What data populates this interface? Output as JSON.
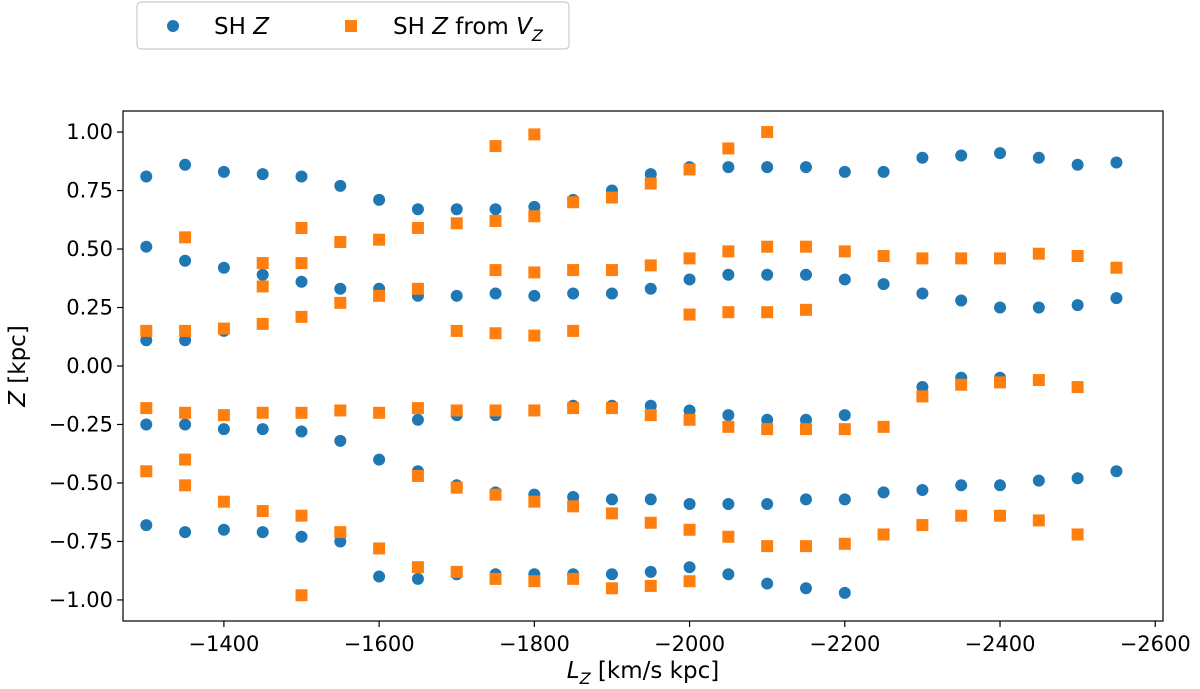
{
  "chart_data": {
    "type": "scatter",
    "title": "",
    "xlabel": {
      "main": "L",
      "sub": "Z",
      "rest": " [km/s kpc]"
    },
    "ylabel": {
      "main": "Z",
      "rest": " [kpc]"
    },
    "xlim": [
      -1270,
      -2610
    ],
    "ylim": [
      -1.09,
      1.09
    ],
    "x_ticks": [
      -1400,
      -1600,
      -1800,
      -2000,
      -2200,
      -2400,
      -2600
    ],
    "x_tick_labels": [
      "−1400",
      "−1600",
      "−1800",
      "−2000",
      "−2200",
      "−2400",
      "−2600"
    ],
    "y_ticks": [
      1.0,
      0.75,
      0.5,
      0.25,
      0.0,
      -0.25,
      -0.5,
      -0.75,
      -1.0
    ],
    "y_tick_labels": [
      "1.00",
      "0.75",
      "0.50",
      "0.25",
      "0.00",
      "−0.25",
      "−0.50",
      "−0.75",
      "−1.00"
    ],
    "grid": false,
    "legend_position": "top-left-outside",
    "series": [
      {
        "name": "SH Z",
        "legend": {
          "prefix": "SH ",
          "italic": "Z",
          "suffix": "",
          "sub": ""
        },
        "marker": "circle",
        "color": "#1f77b4",
        "points": [
          [
            -1300,
            0.81
          ],
          [
            -1300,
            0.51
          ],
          [
            -1300,
            0.11
          ],
          [
            -1300,
            -0.25
          ],
          [
            -1300,
            -0.68
          ],
          [
            -1350,
            0.86
          ],
          [
            -1350,
            0.45
          ],
          [
            -1350,
            0.11
          ],
          [
            -1350,
            -0.25
          ],
          [
            -1350,
            -0.71
          ],
          [
            -1400,
            0.83
          ],
          [
            -1400,
            0.42
          ],
          [
            -1400,
            0.15
          ],
          [
            -1400,
            -0.27
          ],
          [
            -1400,
            -0.7
          ],
          [
            -1450,
            0.82
          ],
          [
            -1450,
            0.39
          ],
          [
            -1450,
            -0.27
          ],
          [
            -1450,
            -0.71
          ],
          [
            -1500,
            0.81
          ],
          [
            -1500,
            0.36
          ],
          [
            -1500,
            -0.28
          ],
          [
            -1500,
            -0.73
          ],
          [
            -1550,
            0.77
          ],
          [
            -1550,
            0.33
          ],
          [
            -1550,
            -0.32
          ],
          [
            -1550,
            -0.75
          ],
          [
            -1600,
            0.71
          ],
          [
            -1600,
            0.33
          ],
          [
            -1600,
            -0.4
          ],
          [
            -1600,
            -0.9
          ],
          [
            -1650,
            0.67
          ],
          [
            -1650,
            0.3
          ],
          [
            -1650,
            -0.23
          ],
          [
            -1650,
            -0.45
          ],
          [
            -1650,
            -0.91
          ],
          [
            -1700,
            0.67
          ],
          [
            -1700,
            0.3
          ],
          [
            -1700,
            -0.21
          ],
          [
            -1700,
            -0.51
          ],
          [
            -1700,
            -0.89
          ],
          [
            -1750,
            0.67
          ],
          [
            -1750,
            0.31
          ],
          [
            -1750,
            -0.21
          ],
          [
            -1750,
            -0.54
          ],
          [
            -1750,
            -0.89
          ],
          [
            -1800,
            0.68
          ],
          [
            -1800,
            0.3
          ],
          [
            -1800,
            -0.19
          ],
          [
            -1800,
            -0.55
          ],
          [
            -1800,
            -0.89
          ],
          [
            -1850,
            0.71
          ],
          [
            -1850,
            0.31
          ],
          [
            -1850,
            -0.17
          ],
          [
            -1850,
            -0.56
          ],
          [
            -1850,
            -0.89
          ],
          [
            -1900,
            0.75
          ],
          [
            -1900,
            0.31
          ],
          [
            -1900,
            -0.17
          ],
          [
            -1900,
            -0.57
          ],
          [
            -1900,
            -0.89
          ],
          [
            -1950,
            0.82
          ],
          [
            -1950,
            0.33
          ],
          [
            -1950,
            -0.17
          ],
          [
            -1950,
            -0.57
          ],
          [
            -1950,
            -0.88
          ],
          [
            -2000,
            0.85
          ],
          [
            -2000,
            0.37
          ],
          [
            -2000,
            -0.19
          ],
          [
            -2000,
            -0.59
          ],
          [
            -2000,
            -0.86
          ],
          [
            -2050,
            0.85
          ],
          [
            -2050,
            0.39
          ],
          [
            -2050,
            -0.21
          ],
          [
            -2050,
            -0.59
          ],
          [
            -2050,
            -0.89
          ],
          [
            -2100,
            0.85
          ],
          [
            -2100,
            0.39
          ],
          [
            -2100,
            -0.23
          ],
          [
            -2100,
            -0.59
          ],
          [
            -2100,
            -0.93
          ],
          [
            -2150,
            0.85
          ],
          [
            -2150,
            0.39
          ],
          [
            -2150,
            -0.23
          ],
          [
            -2150,
            -0.57
          ],
          [
            -2150,
            -0.95
          ],
          [
            -2200,
            0.83
          ],
          [
            -2200,
            0.37
          ],
          [
            -2200,
            -0.21
          ],
          [
            -2200,
            -0.57
          ],
          [
            -2200,
            -0.97
          ],
          [
            -2250,
            0.83
          ],
          [
            -2250,
            0.35
          ],
          [
            -2250,
            -0.54
          ],
          [
            -2300,
            0.89
          ],
          [
            -2300,
            0.31
          ],
          [
            -2300,
            -0.09
          ],
          [
            -2300,
            -0.53
          ],
          [
            -2350,
            0.9
          ],
          [
            -2350,
            0.28
          ],
          [
            -2350,
            -0.05
          ],
          [
            -2350,
            -0.51
          ],
          [
            -2400,
            0.91
          ],
          [
            -2400,
            0.25
          ],
          [
            -2400,
            -0.05
          ],
          [
            -2400,
            -0.51
          ],
          [
            -2450,
            0.89
          ],
          [
            -2450,
            0.25
          ],
          [
            -2450,
            -0.49
          ],
          [
            -2500,
            0.86
          ],
          [
            -2500,
            0.26
          ],
          [
            -2500,
            -0.48
          ],
          [
            -2550,
            0.87
          ],
          [
            -2550,
            0.29
          ],
          [
            -2550,
            -0.45
          ]
        ]
      },
      {
        "name": "SH Z from V_Z",
        "legend": {
          "prefix": "SH ",
          "italic": "Z",
          "suffix": " from ",
          "italic2": "V",
          "sub": "Z"
        },
        "marker": "square",
        "color": "#ff7f0e",
        "points": [
          [
            -1300,
            0.15
          ],
          [
            -1300,
            -0.18
          ],
          [
            -1300,
            -0.45
          ],
          [
            -1350,
            0.55
          ],
          [
            -1350,
            0.15
          ],
          [
            -1350,
            -0.2
          ],
          [
            -1350,
            -0.4
          ],
          [
            -1350,
            -0.51
          ],
          [
            -1400,
            0.16
          ],
          [
            -1400,
            -0.21
          ],
          [
            -1400,
            -0.58
          ],
          [
            -1450,
            0.44
          ],
          [
            -1450,
            0.34
          ],
          [
            -1450,
            0.18
          ],
          [
            -1450,
            -0.2
          ],
          [
            -1450,
            -0.62
          ],
          [
            -1500,
            0.59
          ],
          [
            -1500,
            0.44
          ],
          [
            -1500,
            0.21
          ],
          [
            -1500,
            -0.2
          ],
          [
            -1500,
            -0.64
          ],
          [
            -1500,
            -0.98
          ],
          [
            -1550,
            0.53
          ],
          [
            -1550,
            0.27
          ],
          [
            -1550,
            -0.19
          ],
          [
            -1550,
            -0.71
          ],
          [
            -1600,
            0.54
          ],
          [
            -1600,
            0.3
          ],
          [
            -1600,
            -0.2
          ],
          [
            -1600,
            -0.78
          ],
          [
            -1650,
            0.59
          ],
          [
            -1650,
            0.33
          ],
          [
            -1650,
            -0.18
          ],
          [
            -1650,
            -0.47
          ],
          [
            -1650,
            -0.86
          ],
          [
            -1700,
            0.61
          ],
          [
            -1700,
            0.15
          ],
          [
            -1700,
            -0.19
          ],
          [
            -1700,
            -0.52
          ],
          [
            -1700,
            -0.88
          ],
          [
            -1750,
            0.94
          ],
          [
            -1750,
            0.62
          ],
          [
            -1750,
            0.41
          ],
          [
            -1750,
            0.14
          ],
          [
            -1750,
            -0.19
          ],
          [
            -1750,
            -0.55
          ],
          [
            -1750,
            -0.91
          ],
          [
            -1800,
            0.99
          ],
          [
            -1800,
            0.64
          ],
          [
            -1800,
            0.4
          ],
          [
            -1800,
            0.13
          ],
          [
            -1800,
            -0.19
          ],
          [
            -1800,
            -0.58
          ],
          [
            -1800,
            -0.92
          ],
          [
            -1850,
            0.7
          ],
          [
            -1850,
            0.41
          ],
          [
            -1850,
            0.15
          ],
          [
            -1850,
            -0.18
          ],
          [
            -1850,
            -0.6
          ],
          [
            -1850,
            -0.91
          ],
          [
            -1900,
            0.72
          ],
          [
            -1900,
            0.41
          ],
          [
            -1900,
            -0.18
          ],
          [
            -1900,
            -0.63
          ],
          [
            -1900,
            -0.95
          ],
          [
            -1950,
            0.78
          ],
          [
            -1950,
            0.43
          ],
          [
            -1950,
            -0.21
          ],
          [
            -1950,
            -0.67
          ],
          [
            -1950,
            -0.94
          ],
          [
            -2000,
            0.84
          ],
          [
            -2000,
            0.46
          ],
          [
            -2000,
            0.22
          ],
          [
            -2000,
            -0.23
          ],
          [
            -2000,
            -0.7
          ],
          [
            -2000,
            -0.92
          ],
          [
            -2050,
            0.93
          ],
          [
            -2050,
            0.49
          ],
          [
            -2050,
            0.23
          ],
          [
            -2050,
            -0.26
          ],
          [
            -2050,
            -0.73
          ],
          [
            -2100,
            1.0
          ],
          [
            -2100,
            0.51
          ],
          [
            -2100,
            0.23
          ],
          [
            -2100,
            -0.27
          ],
          [
            -2100,
            -0.77
          ],
          [
            -2150,
            0.51
          ],
          [
            -2150,
            0.24
          ],
          [
            -2150,
            -0.27
          ],
          [
            -2150,
            -0.77
          ],
          [
            -2200,
            0.49
          ],
          [
            -2200,
            -0.27
          ],
          [
            -2200,
            -0.76
          ],
          [
            -2250,
            0.47
          ],
          [
            -2250,
            -0.26
          ],
          [
            -2250,
            -0.72
          ],
          [
            -2300,
            0.46
          ],
          [
            -2300,
            -0.13
          ],
          [
            -2300,
            -0.68
          ],
          [
            -2350,
            0.46
          ],
          [
            -2350,
            -0.08
          ],
          [
            -2350,
            -0.64
          ],
          [
            -2400,
            0.46
          ],
          [
            -2400,
            -0.07
          ],
          [
            -2400,
            -0.64
          ],
          [
            -2450,
            0.48
          ],
          [
            -2450,
            -0.06
          ],
          [
            -2450,
            -0.66
          ],
          [
            -2500,
            0.47
          ],
          [
            -2500,
            -0.09
          ],
          [
            -2500,
            -0.72
          ],
          [
            -2550,
            0.42
          ]
        ]
      }
    ]
  }
}
